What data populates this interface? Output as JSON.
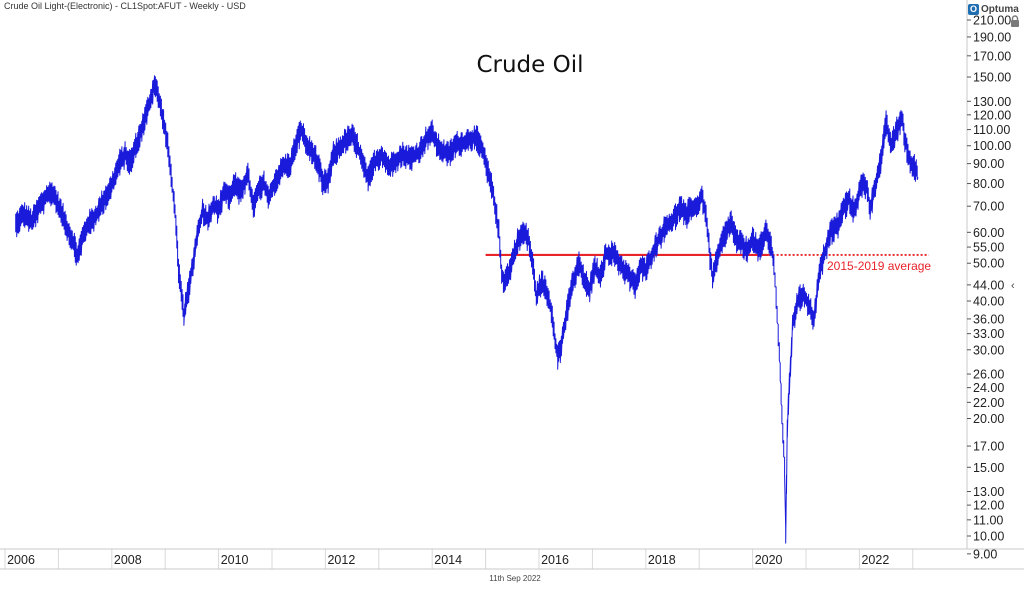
{
  "header": {
    "title": "Crude Oil Light-(Electronic) - CL1Spot:AFUT - Weekly - USD"
  },
  "logo": {
    "text": "Optuma"
  },
  "footer": {
    "date": "11th Sep 2022"
  },
  "colors": {
    "price": "#1a1adb",
    "average": "#e8232a",
    "grid": "#d8d8d8"
  },
  "chart_data": {
    "type": "line",
    "title": "Crude Oil",
    "xlabel": "",
    "ylabel": "",
    "y_scale": "log",
    "ylim": [
      9,
      215
    ],
    "xlim": [
      2005.9,
      2023.6
    ],
    "x_ticks": [
      "2006",
      "2008",
      "2010",
      "2012",
      "2014",
      "2016",
      "2018",
      "2020",
      "2022"
    ],
    "y_ticks": [
      "210.00",
      "190.00",
      "170.00",
      "150.00",
      "130.00",
      "120.00",
      "110.00",
      "100.00",
      "90.00",
      "80.00",
      "70.00",
      "60.00",
      "55.00",
      "50.00",
      "44.00",
      "40.00",
      "36.00",
      "33.00",
      "30.00",
      "26.00",
      "24.00",
      "22.00",
      "20.00",
      "17.00",
      "15.00",
      "13.00",
      "12.00",
      "11.00",
      "10.00",
      "9.00"
    ],
    "series": [
      {
        "points": [
          [
            2005.9,
            63
          ],
          [
            2006.05,
            67
          ],
          [
            2006.2,
            64
          ],
          [
            2006.35,
            70
          ],
          [
            2006.5,
            75
          ],
          [
            2006.6,
            76
          ],
          [
            2006.75,
            68
          ],
          [
            2006.9,
            60
          ],
          [
            2007.0,
            56
          ],
          [
            2007.05,
            52
          ],
          [
            2007.15,
            58
          ],
          [
            2007.25,
            63
          ],
          [
            2007.4,
            66
          ],
          [
            2007.55,
            73
          ],
          [
            2007.7,
            79
          ],
          [
            2007.85,
            91
          ],
          [
            2007.95,
            95
          ],
          [
            2008.05,
            91
          ],
          [
            2008.15,
            100
          ],
          [
            2008.3,
            115
          ],
          [
            2008.45,
            135
          ],
          [
            2008.5,
            145
          ],
          [
            2008.55,
            137
          ],
          [
            2008.65,
            120
          ],
          [
            2008.75,
            100
          ],
          [
            2008.85,
            75
          ],
          [
            2008.9,
            64
          ],
          [
            2008.95,
            48
          ],
          [
            2009.0,
            42
          ],
          [
            2009.05,
            37
          ],
          [
            2009.1,
            40
          ],
          [
            2009.2,
            48
          ],
          [
            2009.3,
            59
          ],
          [
            2009.4,
            68
          ],
          [
            2009.5,
            65
          ],
          [
            2009.6,
            71
          ],
          [
            2009.7,
            68
          ],
          [
            2009.8,
            77
          ],
          [
            2009.9,
            74
          ],
          [
            2010.0,
            80
          ],
          [
            2010.1,
            76
          ],
          [
            2010.25,
            84
          ],
          [
            2010.35,
            70
          ],
          [
            2010.45,
            77
          ],
          [
            2010.55,
            80
          ],
          [
            2010.65,
            73
          ],
          [
            2010.75,
            81
          ],
          [
            2010.9,
            88
          ],
          [
            2011.05,
            90
          ],
          [
            2011.15,
            102
          ],
          [
            2011.25,
            110
          ],
          [
            2011.35,
            100
          ],
          [
            2011.5,
            95
          ],
          [
            2011.6,
            86
          ],
          [
            2011.65,
            80
          ],
          [
            2011.75,
            82
          ],
          [
            2011.85,
            95
          ],
          [
            2012.0,
            100
          ],
          [
            2012.1,
            104
          ],
          [
            2012.2,
            106
          ],
          [
            2012.3,
            100
          ],
          [
            2012.4,
            90
          ],
          [
            2012.5,
            82
          ],
          [
            2012.6,
            90
          ],
          [
            2012.75,
            95
          ],
          [
            2012.9,
            88
          ],
          [
            2013.0,
            92
          ],
          [
            2013.15,
            95
          ],
          [
            2013.3,
            93
          ],
          [
            2013.45,
            96
          ],
          [
            2013.6,
            105
          ],
          [
            2013.7,
            108
          ],
          [
            2013.8,
            100
          ],
          [
            2013.9,
            97
          ],
          [
            2014.0,
            95
          ],
          [
            2014.15,
            101
          ],
          [
            2014.3,
            102
          ],
          [
            2014.45,
            105
          ],
          [
            2014.55,
            104
          ],
          [
            2014.65,
            96
          ],
          [
            2014.75,
            85
          ],
          [
            2014.85,
            75
          ],
          [
            2014.95,
            60
          ],
          [
            2015.0,
            47
          ],
          [
            2015.05,
            45
          ],
          [
            2015.15,
            48
          ],
          [
            2015.3,
            57
          ],
          [
            2015.4,
            60
          ],
          [
            2015.5,
            58
          ],
          [
            2015.6,
            48
          ],
          [
            2015.65,
            41
          ],
          [
            2015.75,
            45
          ],
          [
            2015.85,
            42
          ],
          [
            2015.95,
            37
          ],
          [
            2016.0,
            32
          ],
          [
            2016.05,
            29
          ],
          [
            2016.1,
            30
          ],
          [
            2016.2,
            36
          ],
          [
            2016.3,
            43
          ],
          [
            2016.45,
            50
          ],
          [
            2016.55,
            45
          ],
          [
            2016.65,
            43
          ],
          [
            2016.75,
            49
          ],
          [
            2016.85,
            46
          ],
          [
            2016.95,
            53
          ],
          [
            2017.1,
            53
          ],
          [
            2017.25,
            49
          ],
          [
            2017.4,
            46
          ],
          [
            2017.5,
            44
          ],
          [
            2017.6,
            49
          ],
          [
            2017.7,
            48
          ],
          [
            2017.8,
            52
          ],
          [
            2017.95,
            58
          ],
          [
            2018.1,
            63
          ],
          [
            2018.2,
            64
          ],
          [
            2018.35,
            70
          ],
          [
            2018.45,
            66
          ],
          [
            2018.55,
            70
          ],
          [
            2018.65,
            69
          ],
          [
            2018.75,
            75
          ],
          [
            2018.85,
            63
          ],
          [
            2018.9,
            52
          ],
          [
            2018.95,
            46
          ],
          [
            2019.05,
            52
          ],
          [
            2019.15,
            58
          ],
          [
            2019.3,
            64
          ],
          [
            2019.4,
            57
          ],
          [
            2019.5,
            56
          ],
          [
            2019.6,
            54
          ],
          [
            2019.7,
            58
          ],
          [
            2019.8,
            54
          ],
          [
            2019.9,
            57
          ],
          [
            2019.95,
            61
          ],
          [
            2020.05,
            55
          ],
          [
            2020.1,
            50
          ],
          [
            2020.2,
            30
          ],
          [
            2020.25,
            20
          ],
          [
            2020.3,
            15
          ],
          [
            2020.32,
            10
          ],
          [
            2020.35,
            19
          ],
          [
            2020.45,
            35
          ],
          [
            2020.55,
            40
          ],
          [
            2020.65,
            42
          ],
          [
            2020.75,
            39
          ],
          [
            2020.85,
            36
          ],
          [
            2020.95,
            47
          ],
          [
            2021.05,
            53
          ],
          [
            2021.15,
            60
          ],
          [
            2021.3,
            63
          ],
          [
            2021.4,
            69
          ],
          [
            2021.5,
            73
          ],
          [
            2021.6,
            68
          ],
          [
            2021.75,
            80
          ],
          [
            2021.85,
            78
          ],
          [
            2021.9,
            68
          ],
          [
            2022.0,
            80
          ],
          [
            2022.1,
            92
          ],
          [
            2022.2,
            114
          ],
          [
            2022.3,
            100
          ],
          [
            2022.4,
            110
          ],
          [
            2022.5,
            118
          ],
          [
            2022.55,
            104
          ],
          [
            2022.65,
            90
          ],
          [
            2022.75,
            88
          ],
          [
            2022.8,
            83
          ]
        ]
      }
    ],
    "reference_lines": [
      {
        "label": "2015-2019 average",
        "value": 52.5,
        "x_start": 2014.7,
        "x_solid_end": 2020.0,
        "x_end": 2023.0
      }
    ]
  }
}
